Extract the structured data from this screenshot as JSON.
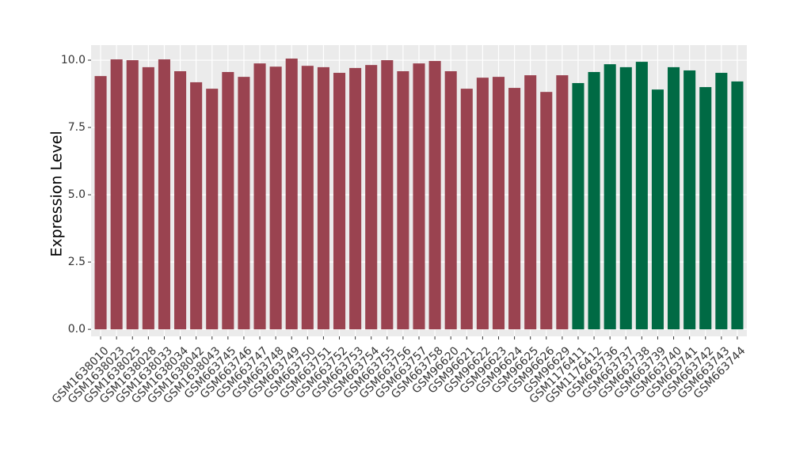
{
  "chart_data": {
    "type": "bar",
    "y_label": "Expression Level",
    "categories": [
      "GSM1638010",
      "GSM1638023",
      "GSM1638025",
      "GSM1638028",
      "GSM1638033",
      "GSM1638034",
      "GSM1638042",
      "GSM1638043",
      "GSM663745",
      "GSM663746",
      "GSM663747",
      "GSM663748",
      "GSM663749",
      "GSM663750",
      "GSM663751",
      "GSM663752",
      "GSM663753",
      "GSM663754",
      "GSM663755",
      "GSM663756",
      "GSM663757",
      "GSM663758",
      "GSM96620",
      "GSM96621",
      "GSM96622",
      "GSM96623",
      "GSM96624",
      "GSM96625",
      "GSM96626",
      "GSM96629",
      "GSM1176411",
      "GSM1176412",
      "GSM663736",
      "GSM663737",
      "GSM663738",
      "GSM663739",
      "GSM663740",
      "GSM663741",
      "GSM663742",
      "GSM663743",
      "GSM663744"
    ],
    "values": [
      9.41,
      10.03,
      10.0,
      9.74,
      10.03,
      9.59,
      9.18,
      8.94,
      9.56,
      9.38,
      9.88,
      9.76,
      10.06,
      9.79,
      9.74,
      9.53,
      9.71,
      9.82,
      10.0,
      9.59,
      9.88,
      9.97,
      9.59,
      8.94,
      9.35,
      9.38,
      8.97,
      9.44,
      8.82,
      9.44,
      9.15,
      9.56,
      9.85,
      9.74,
      9.94,
      8.91,
      9.74,
      9.62,
      9.0,
      9.53,
      9.21
    ],
    "colors": [
      "#9a4350",
      "#9a4350",
      "#9a4350",
      "#9a4350",
      "#9a4350",
      "#9a4350",
      "#9a4350",
      "#9a4350",
      "#9a4350",
      "#9a4350",
      "#9a4350",
      "#9a4350",
      "#9a4350",
      "#9a4350",
      "#9a4350",
      "#9a4350",
      "#9a4350",
      "#9a4350",
      "#9a4350",
      "#9a4350",
      "#9a4350",
      "#9a4350",
      "#9a4350",
      "#9a4350",
      "#9a4350",
      "#9a4350",
      "#9a4350",
      "#9a4350",
      "#9a4350",
      "#9a4350",
      "#006a44",
      "#006a44",
      "#006a44",
      "#006a44",
      "#006a44",
      "#006a44",
      "#006a44",
      "#006a44",
      "#006a44",
      "#006a44",
      "#006a44"
    ],
    "ylim": [
      -0.26,
      10.56
    ],
    "yticks": [
      {
        "value": 0,
        "label": "0.0"
      },
      {
        "value": 2.5,
        "label": "2.5"
      },
      {
        "value": 5,
        "label": "5.0"
      },
      {
        "value": 7.5,
        "label": "7.5"
      },
      {
        "value": 10,
        "label": "10.0"
      }
    ],
    "grid": true,
    "panel_color": "#ebebeb"
  }
}
